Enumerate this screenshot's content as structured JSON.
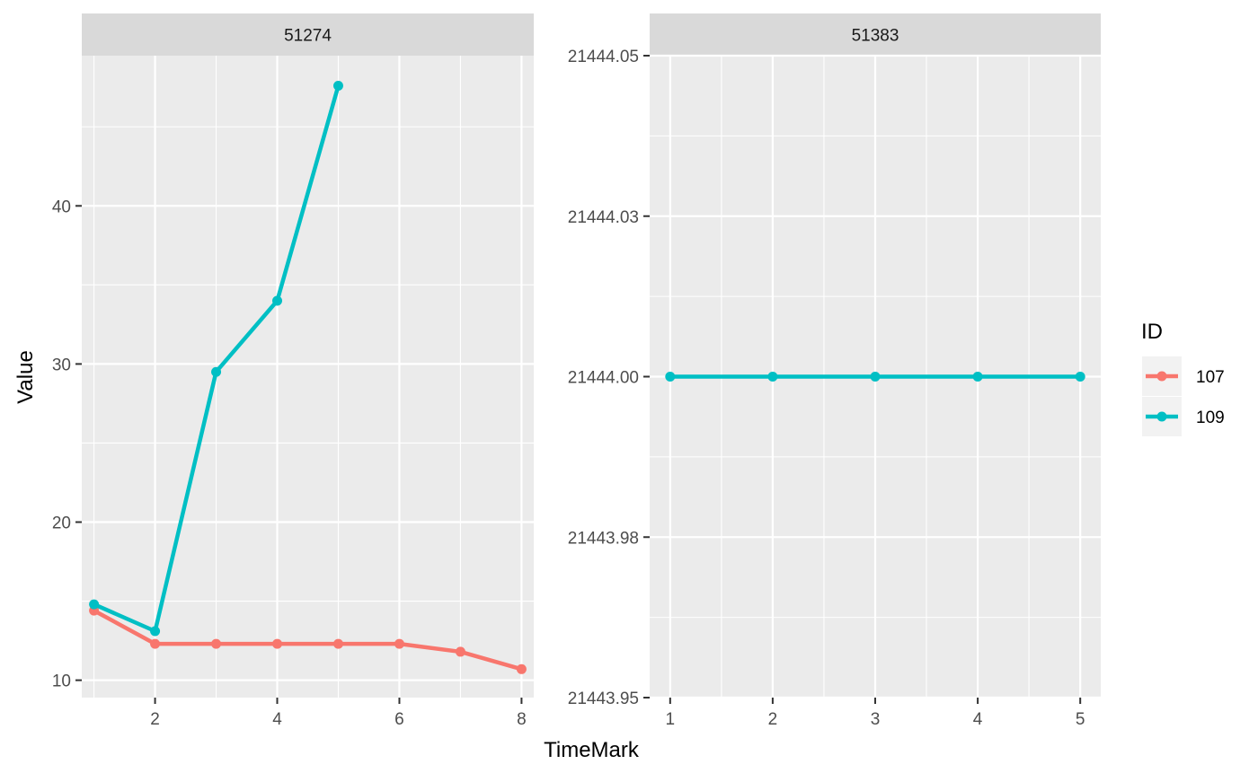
{
  "chart_data": {
    "type": "line",
    "xlabel": "TimeMark",
    "ylabel": "Value",
    "legend": {
      "title": "ID",
      "position": "right",
      "entries": [
        {
          "label": "107",
          "color": "#F8766D"
        },
        {
          "label": "109",
          "color": "#00BFC4"
        }
      ]
    },
    "grid": true,
    "panels": [
      {
        "strip": "51274",
        "xlim": [
          0.8,
          8.2
        ],
        "ylim": [
          8.9,
          49.5
        ],
        "x_ticks": [
          2,
          4,
          6,
          8
        ],
        "x_tick_labels": [
          "2",
          "4",
          "6",
          "8"
        ],
        "y_ticks": [
          10,
          20,
          30,
          40
        ],
        "y_tick_labels": [
          "10",
          "20",
          "30",
          "40"
        ],
        "series": [
          {
            "id": "107",
            "color": "#F8766D",
            "x": [
              1,
              2,
              3,
              4,
              5,
              6,
              7,
              8
            ],
            "y": [
              14.4,
              12.3,
              12.3,
              12.3,
              12.3,
              12.3,
              11.8,
              10.7
            ]
          },
          {
            "id": "109",
            "color": "#00BFC4",
            "x": [
              1,
              2,
              3,
              4,
              5
            ],
            "y": [
              14.8,
              13.1,
              29.5,
              34.0,
              47.6
            ]
          }
        ]
      },
      {
        "strip": "51383",
        "xlim": [
          0.8,
          5.2
        ],
        "ylim": [
          21443.95,
          21444.05
        ],
        "x_ticks": [
          1,
          2,
          3,
          4,
          5
        ],
        "x_tick_labels": [
          "1",
          "2",
          "3",
          "4",
          "5"
        ],
        "y_ticks": [
          21443.95,
          21443.975,
          21444.0,
          21444.025,
          21444.05
        ],
        "y_tick_labels": [
          "21443.95",
          "21443.98",
          "21444.00",
          "21444.03",
          "21444.05"
        ],
        "series": [
          {
            "id": "109",
            "color": "#00BFC4",
            "x": [
              1,
              2,
              3,
              4,
              5
            ],
            "y": [
              21444.0,
              21444.0,
              21444.0,
              21444.0,
              21444.0
            ]
          }
        ]
      }
    ]
  }
}
